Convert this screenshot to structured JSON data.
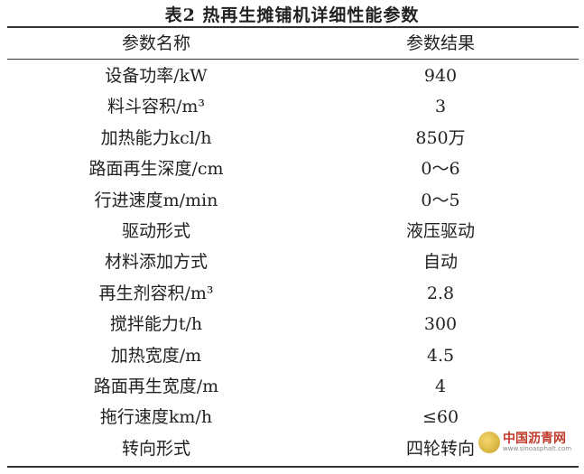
{
  "title": "表2 热再生摊铺机详细性能参数",
  "headers": [
    "参数名称",
    "参数结果"
  ],
  "rows": [
    {
      "name": "设备功率/kW",
      "value": "940"
    },
    {
      "name": "料斗容积/m³",
      "value": "3"
    },
    {
      "name": "加热能力kcl/h",
      "value": "850万"
    },
    {
      "name": "路面再生深度/cm",
      "value": "0～6"
    },
    {
      "name": "行进速度m/min",
      "value": "0～5"
    },
    {
      "name": "驱动形式",
      "value": "液压驱动"
    },
    {
      "name": "材料添加方式",
      "value": "自动"
    },
    {
      "name": "再生剂容积/m³",
      "value": "2.8"
    },
    {
      "name": "搅拌能力t/h",
      "value": "300"
    },
    {
      "name": "加热宽度/m",
      "value": "4.5"
    },
    {
      "name": "路面再生宽度/m",
      "value": "4"
    },
    {
      "name": "拖行速度km/h",
      "value": "≤60"
    },
    {
      "name": "转向形式",
      "value": "四轮转向"
    }
  ],
  "watermark": {
    "name": "中国沥青网",
    "url_text": "www.sinoasphalt.com"
  }
}
